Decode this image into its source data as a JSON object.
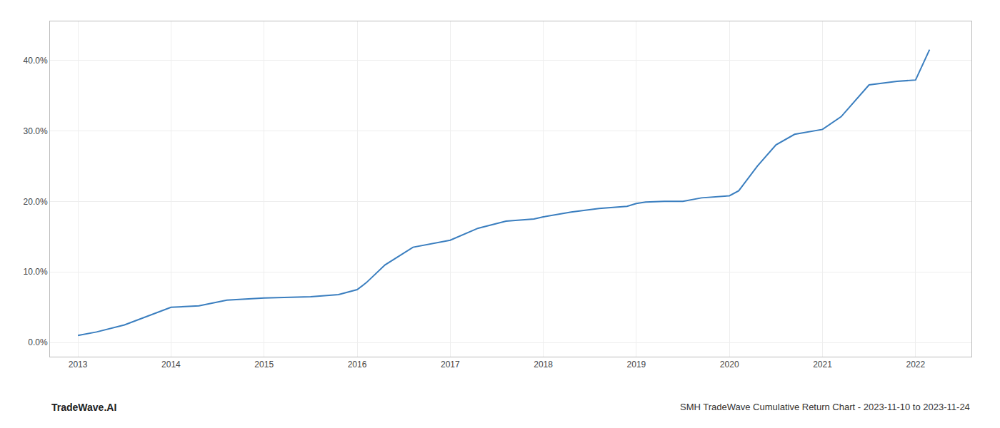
{
  "chart_data": {
    "type": "line",
    "title": "SMH TradeWave Cumulative Return Chart - 2023-11-10 to 2023-11-24",
    "annotations": [
      "TradeWave.AI"
    ],
    "x": [
      2013.0,
      2013.2,
      2013.5,
      2013.8,
      2014.0,
      2014.3,
      2014.6,
      2015.0,
      2015.2,
      2015.5,
      2015.8,
      2016.0,
      2016.1,
      2016.3,
      2016.6,
      2016.9,
      2017.0,
      2017.3,
      2017.6,
      2017.9,
      2018.0,
      2018.3,
      2018.6,
      2018.9,
      2019.0,
      2019.1,
      2019.3,
      2019.5,
      2019.7,
      2020.0,
      2020.1,
      2020.3,
      2020.5,
      2020.7,
      2020.9,
      2021.0,
      2021.2,
      2021.5,
      2021.8,
      2022.0,
      2022.15
    ],
    "values": [
      0.01,
      0.015,
      0.025,
      0.04,
      0.05,
      0.052,
      0.06,
      0.063,
      0.064,
      0.065,
      0.068,
      0.075,
      0.085,
      0.11,
      0.135,
      0.143,
      0.145,
      0.162,
      0.172,
      0.175,
      0.178,
      0.185,
      0.19,
      0.193,
      0.197,
      0.199,
      0.2,
      0.2,
      0.205,
      0.208,
      0.215,
      0.25,
      0.28,
      0.295,
      0.3,
      0.302,
      0.32,
      0.365,
      0.37,
      0.372,
      0.415
    ],
    "color": "#3a7ebf",
    "xlim": [
      2012.7,
      2022.6
    ],
    "xticks": [
      2013,
      2014,
      2015,
      2016,
      2017,
      2018,
      2019,
      2020,
      2021,
      2022
    ],
    "ylim": [
      -0.02,
      0.455
    ],
    "yticks": [
      {
        "value": 0.0,
        "label": "0.0%"
      },
      {
        "value": 0.1,
        "label": "10.0%"
      },
      {
        "value": 0.2,
        "label": "20.0%"
      },
      {
        "value": 0.3,
        "label": "30.0%"
      },
      {
        "value": 0.4,
        "label": "40.0%"
      }
    ],
    "grid": true
  }
}
